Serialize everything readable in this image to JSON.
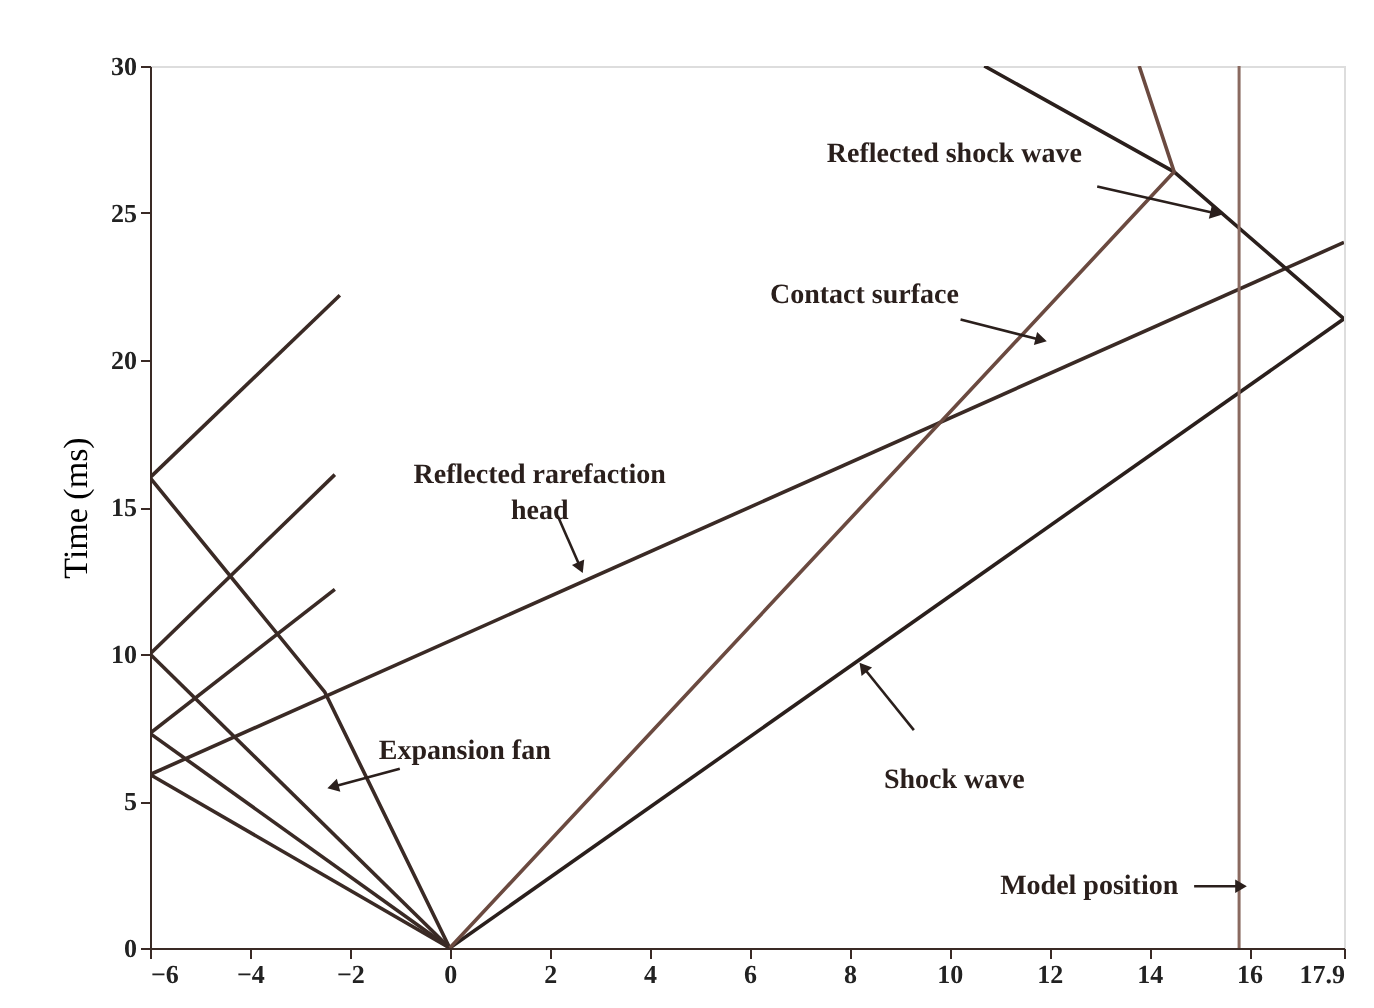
{
  "chart_data": {
    "type": "line",
    "ylabel": "Time (ms)",
    "xlim": [
      -6,
      17.9
    ],
    "xticks": [
      -6,
      -4,
      -2,
      0,
      2,
      4,
      6,
      8,
      10,
      12,
      14,
      16,
      {
        "value": 17.9,
        "label": "17.9"
      }
    ],
    "ylim": [
      0,
      30
    ],
    "yticks": [
      0,
      5,
      10,
      15,
      20,
      25,
      30
    ],
    "grid": false,
    "line_style": "solid",
    "series": [
      {
        "color": "#3a2a25",
        "x": [
          0,
          -6
        ],
        "values": [
          0,
          5.9
        ]
      },
      {
        "color": "#3a2a25",
        "x": [
          0,
          -6
        ],
        "values": [
          0,
          7.3
        ]
      },
      {
        "color": "#3a2a25",
        "x": [
          0,
          -6
        ],
        "values": [
          0,
          10
        ]
      },
      {
        "color": "#3a2a25",
        "x": [
          0,
          -2.5,
          -6
        ],
        "values": [
          0,
          8.7,
          16
        ]
      },
      {
        "color": "#3a2a25",
        "x": [
          -6,
          17.9
        ],
        "values": [
          5.9,
          24
        ]
      },
      {
        "color": "#3a2a25",
        "x": [
          -6,
          -2.3
        ],
        "values": [
          7.3,
          12.2
        ]
      },
      {
        "color": "#3a2a25",
        "x": [
          -6,
          -2.3
        ],
        "values": [
          10,
          16.1
        ]
      },
      {
        "color": "#3a2a25",
        "x": [
          -6,
          -2.2
        ],
        "values": [
          16,
          22.2
        ]
      },
      {
        "color": "#2a1f1c",
        "x": [
          0,
          17.9
        ],
        "values": [
          0,
          21.4
        ]
      },
      {
        "color": "#2a1f1c",
        "x": [
          17.9,
          14.5,
          10.7
        ],
        "values": [
          21.4,
          26.4,
          30
        ]
      },
      {
        "color": "#6b4a40",
        "x": [
          0,
          14.5,
          13.8
        ],
        "values": [
          0,
          26.4,
          30
        ]
      }
    ],
    "ref_lines": [
      {
        "axis": "x",
        "value": 15.8,
        "color": "#8a6a60"
      }
    ],
    "annotations": [
      {
        "text": "Reflected shock wave",
        "x": 15.3,
        "y": 25.0
      },
      {
        "text": "Contact surface",
        "x": 11.8,
        "y": 20.7
      },
      {
        "text": "Reflected rarefaction head",
        "x": 2.6,
        "y": 13.0
      },
      {
        "text": "Expansion fan",
        "x": -2.3,
        "y": 5.5
      },
      {
        "text": "Shock wave",
        "x": 8.3,
        "y": 9.5
      },
      {
        "text": "Model position",
        "x": 15.8,
        "y": 2.1
      }
    ]
  }
}
